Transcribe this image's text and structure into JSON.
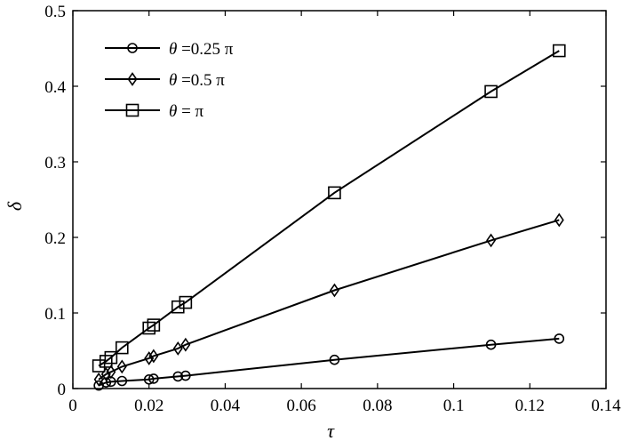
{
  "chart_data": {
    "type": "line",
    "title": "",
    "xlabel": "τ",
    "ylabel": "δ",
    "xlim": [
      0,
      0.14
    ],
    "ylim": [
      0,
      0.5
    ],
    "xticks": [
      0,
      0.02,
      0.04,
      0.06,
      0.08,
      0.1,
      0.12,
      0.14
    ],
    "xtick_labels": [
      "0",
      "0.02",
      "0.04",
      "0.06",
      "0.08",
      "0.1",
      "0.12",
      "0.14"
    ],
    "yticks": [
      0,
      0.1,
      0.2,
      0.3,
      0.4,
      0.5
    ],
    "ytick_labels": [
      "0",
      "0.1",
      "0.2",
      "0.3",
      "0.4",
      "0.5"
    ],
    "grid": false,
    "legend_position": "top-left",
    "series": [
      {
        "name": "θ =0.25 π",
        "name_var": "θ",
        "name_rest": " =0.25 π",
        "marker": "circle",
        "color": "#000000",
        "x": [
          0.0068,
          0.0087,
          0.01,
          0.0129,
          0.02,
          0.0212,
          0.0276,
          0.0296,
          0.0687,
          0.1098,
          0.1277
        ],
        "y": [
          0.004,
          0.008,
          0.009,
          0.01,
          0.012,
          0.013,
          0.016,
          0.017,
          0.038,
          0.058,
          0.066
        ]
      },
      {
        "name": "θ =0.5 π",
        "name_var": "θ",
        "name_rest": " =0.5 π",
        "marker": "diamond",
        "color": "#000000",
        "x": [
          0.0068,
          0.0087,
          0.01,
          0.0129,
          0.02,
          0.0212,
          0.0276,
          0.0296,
          0.0687,
          0.1098,
          0.1277
        ],
        "y": [
          0.012,
          0.019,
          0.022,
          0.029,
          0.04,
          0.043,
          0.053,
          0.058,
          0.13,
          0.196,
          0.223
        ]
      },
      {
        "name": "θ = π",
        "name_var": "θ",
        "name_rest": " = π",
        "marker": "square",
        "color": "#000000",
        "x": [
          0.0068,
          0.0087,
          0.01,
          0.0129,
          0.02,
          0.0212,
          0.0276,
          0.0296,
          0.0687,
          0.1098,
          0.1277
        ],
        "y": [
          0.03,
          0.036,
          0.041,
          0.054,
          0.08,
          0.084,
          0.108,
          0.114,
          0.259,
          0.393,
          0.447
        ]
      }
    ]
  }
}
